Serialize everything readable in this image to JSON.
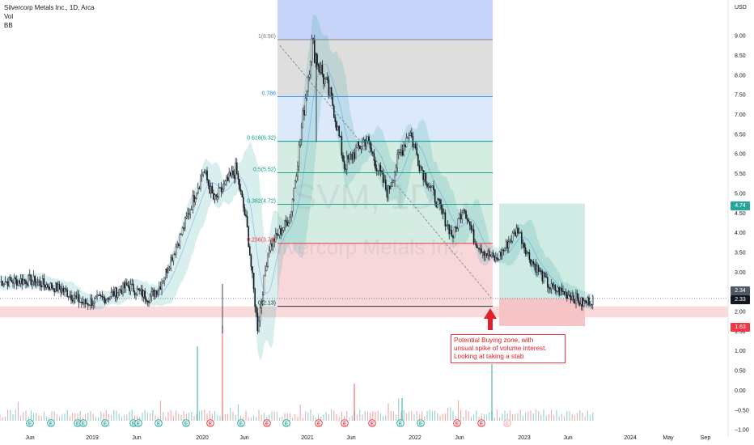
{
  "legend": {
    "symbol_line": "Silvercorp Metals Inc., 1D, Arca",
    "indicator_1": "Vol",
    "indicator_2": "BB"
  },
  "watermark": {
    "ticker": "SVM, 1D",
    "name": "Silvercorp Metals Inc."
  },
  "annotation": {
    "line1": "Potential Buying zone, with",
    "line2": "unsual spike of volume interest.",
    "line3": "Looking at taking a stab"
  },
  "price_tags": {
    "target": "4.74",
    "last_a": "2.34",
    "last_b": "2.33",
    "stop": "1.63"
  },
  "colors": {
    "candle": "#131722",
    "bollinger_fill": "#26a69a",
    "fib_blue": "#c7d4f9",
    "fib_grey": "#dedede",
    "fib_lightblue": "#dbe9fa",
    "fib_green": "#d5ece3",
    "fib_red": "#f8d7da",
    "target_zone": "#cfebe4",
    "stop_zone": "#f6c3c7",
    "arrow": "#e0202a",
    "vol_up": "#26a69a",
    "vol_down": "#ef5350"
  },
  "chart_data": {
    "type": "candlestick",
    "y_axis": {
      "unit": "USD",
      "range": [
        -1.0,
        10.0
      ],
      "ticks": [
        "9.00",
        "8.50",
        "8.00",
        "7.50",
        "7.00",
        "6.50",
        "6.00",
        "5.50",
        "5.00",
        "4.50",
        "4.00",
        "3.50",
        "3.00",
        "2.50",
        "2.00",
        "1.50",
        "1.00",
        "0.50",
        "0.00",
        "−0.50",
        "−1.00"
      ]
    },
    "x_axis": {
      "ticks": [
        "Jun",
        "2019",
        "Jun",
        "2020",
        "Jun",
        "2021",
        "Jun",
        "2022",
        "Jun",
        "2023",
        "Jun",
        "2024",
        "May",
        "Sep"
      ]
    },
    "price_path": [
      [
        "2018-03",
        2.75
      ],
      [
        "2018-06",
        2.8
      ],
      [
        "2018-09",
        2.55
      ],
      [
        "2018-11",
        2.2
      ],
      [
        "2019-01",
        2.35
      ],
      [
        "2019-03",
        2.65
      ],
      [
        "2019-05",
        2.35
      ],
      [
        "2019-06",
        2.65
      ],
      [
        "2019-08",
        4.0
      ],
      [
        "2019-10",
        5.6
      ],
      [
        "2019-11",
        4.8
      ],
      [
        "2020-01",
        5.6
      ],
      [
        "2020-02",
        4.2
      ],
      [
        "2020-03",
        1.6
      ],
      [
        "2020-04",
        3.6
      ],
      [
        "2020-06",
        4.4
      ],
      [
        "2020-07",
        6.5
      ],
      [
        "2020-08",
        8.8
      ],
      [
        "2020-09",
        8.0
      ],
      [
        "2020-10",
        7.2
      ],
      [
        "2020-11",
        5.7
      ],
      [
        "2021-01",
        6.4
      ],
      [
        "2021-03",
        5.0
      ],
      [
        "2021-04",
        5.9
      ],
      [
        "2021-05",
        6.6
      ],
      [
        "2021-06",
        5.7
      ],
      [
        "2021-08",
        4.5
      ],
      [
        "2021-09",
        3.9
      ],
      [
        "2021-10",
        4.7
      ],
      [
        "2021-11",
        3.8
      ],
      [
        "2021-12",
        3.5
      ],
      [
        "2022-01",
        3.3
      ],
      [
        "2022-03",
        4.1
      ],
      [
        "2022-04",
        3.4
      ],
      [
        "2022-06",
        2.6
      ],
      [
        "2022-08",
        2.4
      ],
      [
        "2022-09",
        2.2
      ],
      [
        "2022-10",
        2.33
      ]
    ],
    "fibonacci": {
      "levels": [
        {
          "ratio": "1",
          "value": 8.9,
          "label": "1(8.90)"
        },
        {
          "ratio": "0.786",
          "value": 7.45,
          "label": "0.786"
        },
        {
          "ratio": "0.618",
          "value": 6.32,
          "label": "0.618(6.32)"
        },
        {
          "ratio": "0.5",
          "value": 5.52,
          "label": "0.5(5.52)"
        },
        {
          "ratio": "0.382",
          "value": 4.72,
          "label": "0.382(4.72)"
        },
        {
          "ratio": "0.236",
          "value": 3.73,
          "label": "0.236(3.73)"
        },
        {
          "ratio": "0",
          "value": 2.13,
          "label": "0(2.13)"
        }
      ]
    },
    "support_zone": [
      1.85,
      2.13
    ],
    "long_position": {
      "entry": 2.33,
      "target": 4.74,
      "stop": 1.63
    },
    "last_price": 2.33,
    "grid": false
  }
}
